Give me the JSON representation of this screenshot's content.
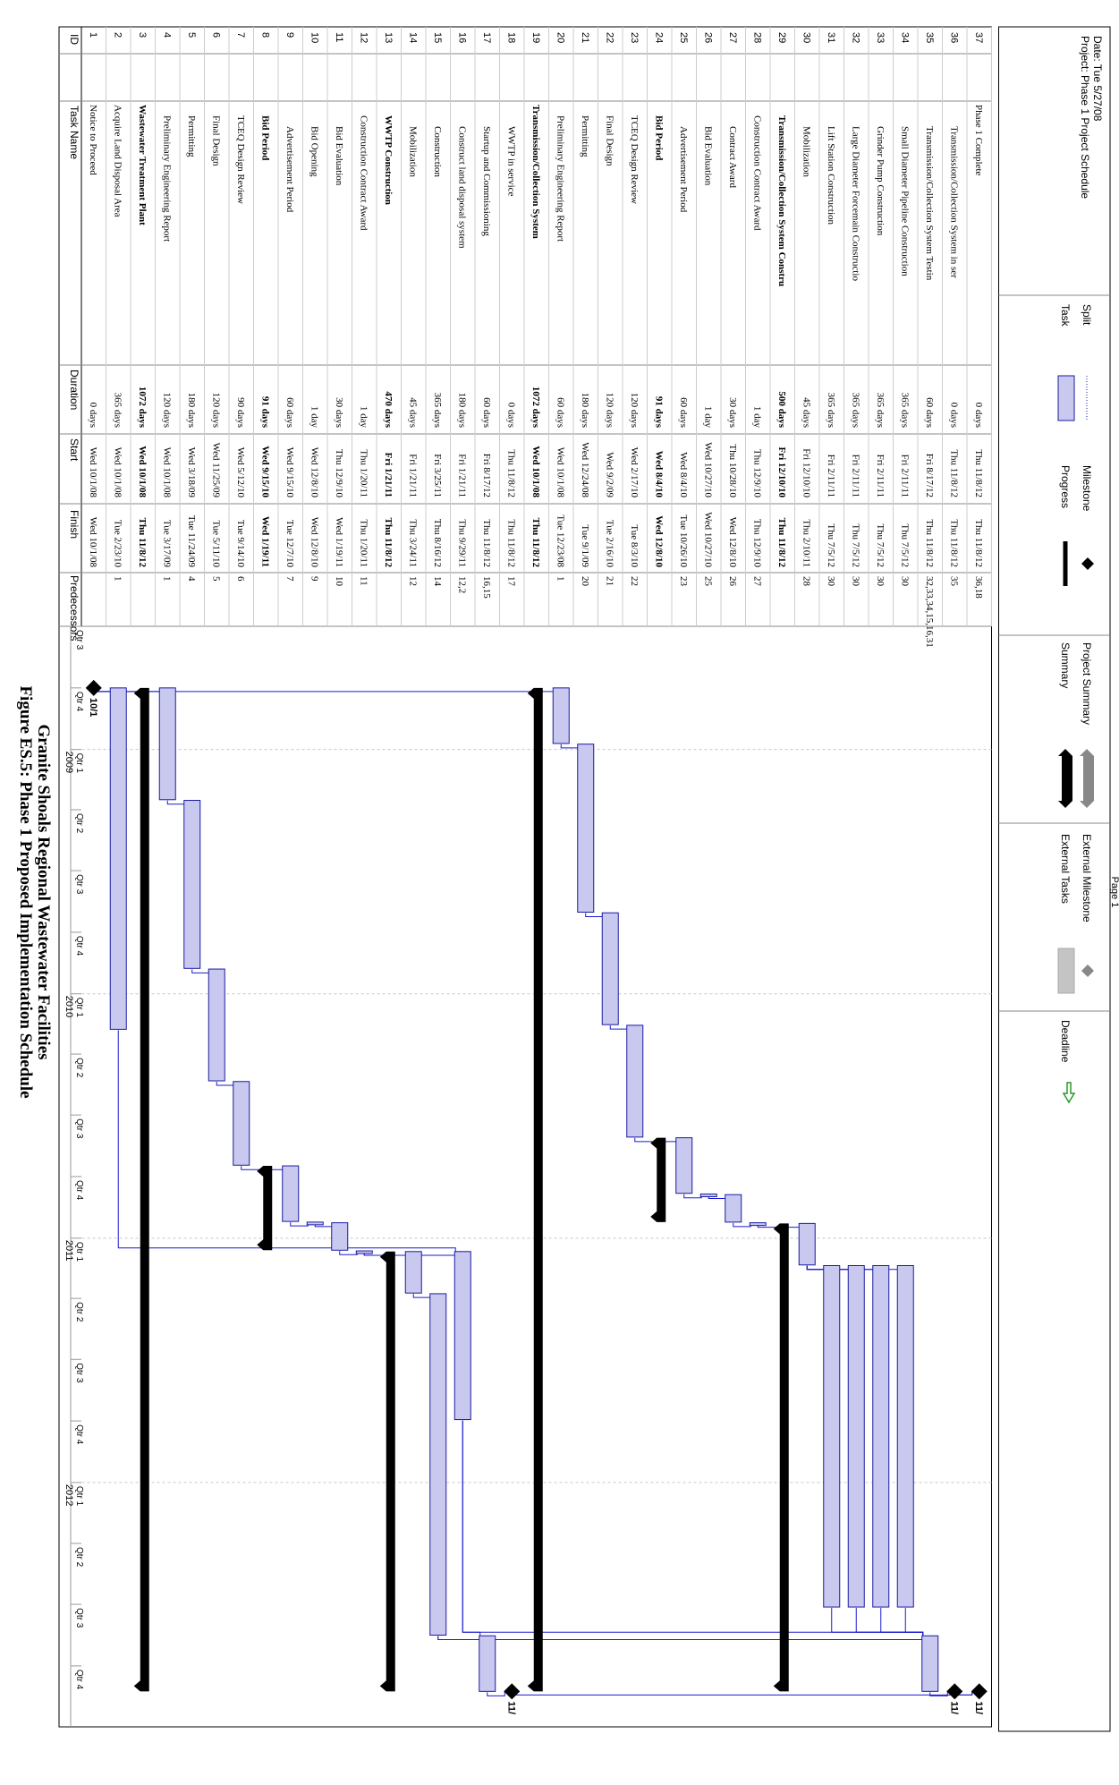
{
  "title_line1": "Figure ES.5: Phase 1 Proposed Implementation Schedule",
  "title_line2": "Granite Shoals Regional Wastewater Facilities",
  "columns": {
    "id": "ID",
    "name": "Task Name",
    "duration": "Duration",
    "start": "Start",
    "finish": "Finish",
    "predecessors": "Predecessors"
  },
  "timescale": {
    "years": [
      "2009",
      "2010",
      "2011",
      "2012"
    ],
    "quarters": [
      "Qtr 3",
      "Qtr 4",
      "Qtr 1",
      "Qtr 2",
      "Qtr 3",
      "Qtr 4",
      "Qtr 1",
      "Qtr 2",
      "Qtr 3",
      "Qtr 4",
      "Qtr 1",
      "Qtr 2",
      "Qtr 3",
      "Qtr 4",
      "Qtr 1",
      "Qtr 2",
      "Qtr 3",
      "Qtr 4"
    ]
  },
  "chart_data": {
    "type": "table",
    "time_range": [
      "2008-07-01",
      "2012-12-31"
    ],
    "tasks": [
      {
        "id": "1",
        "name": "Notice to Proceed",
        "duration": "0 days",
        "start": "Wed 10/1/08",
        "finish": "Wed 10/1/08",
        "pred": "",
        "type": "milestone",
        "level": 0,
        "bold": false,
        "s": "2008-10-01",
        "f": "2008-10-01",
        "label": "10/1"
      },
      {
        "id": "2",
        "name": "Acquire Land Disposal Area",
        "duration": "365 days",
        "start": "Wed 10/1/08",
        "finish": "Tue 2/23/10",
        "pred": "1",
        "type": "task",
        "level": 0,
        "bold": false,
        "s": "2008-10-01",
        "f": "2010-02-23"
      },
      {
        "id": "3",
        "name": "Wastewater Treatment Plant",
        "duration": "1072 days",
        "start": "Wed 10/1/08",
        "finish": "Thu 11/8/12",
        "pred": "",
        "type": "summary",
        "level": 0,
        "bold": true,
        "s": "2008-10-01",
        "f": "2012-11-08"
      },
      {
        "id": "4",
        "name": "Preliminary Engineering Report",
        "duration": "120 days",
        "start": "Wed 10/1/08",
        "finish": "Tue 3/17/09",
        "pred": "1",
        "type": "task",
        "level": 1,
        "bold": false,
        "s": "2008-10-01",
        "f": "2009-03-17"
      },
      {
        "id": "5",
        "name": "Permitting",
        "duration": "180 days",
        "start": "Wed 3/18/09",
        "finish": "Tue 11/24/09",
        "pred": "4",
        "type": "task",
        "level": 1,
        "bold": false,
        "s": "2009-03-18",
        "f": "2009-11-24"
      },
      {
        "id": "6",
        "name": "Final Design",
        "duration": "120 days",
        "start": "Wed 11/25/09",
        "finish": "Tue 5/11/10",
        "pred": "5",
        "type": "task",
        "level": 1,
        "bold": false,
        "s": "2009-11-25",
        "f": "2010-05-11"
      },
      {
        "id": "7",
        "name": "TCEQ Design Review",
        "duration": "90 days",
        "start": "Wed 5/12/10",
        "finish": "Tue 9/14/10",
        "pred": "6",
        "type": "task",
        "level": 1,
        "bold": false,
        "s": "2010-05-12",
        "f": "2010-09-14"
      },
      {
        "id": "8",
        "name": "Bid Period",
        "duration": "91 days",
        "start": "Wed 9/15/10",
        "finish": "Wed 1/19/11",
        "pred": "",
        "type": "summary",
        "level": 1,
        "bold": true,
        "s": "2010-09-15",
        "f": "2011-01-19"
      },
      {
        "id": "9",
        "name": "Advertisement Period",
        "duration": "60 days",
        "start": "Wed 9/15/10",
        "finish": "Tue 12/7/10",
        "pred": "7",
        "type": "task",
        "level": 2,
        "bold": false,
        "s": "2010-09-15",
        "f": "2010-12-07"
      },
      {
        "id": "10",
        "name": "Bid Opening",
        "duration": "1 day",
        "start": "Wed 12/8/10",
        "finish": "Wed 12/8/10",
        "pred": "9",
        "type": "task",
        "level": 2,
        "bold": false,
        "s": "2010-12-08",
        "f": "2010-12-08"
      },
      {
        "id": "11",
        "name": "Bid Evaluation",
        "duration": "30 days",
        "start": "Thu 12/9/10",
        "finish": "Wed 1/19/11",
        "pred": "10",
        "type": "task",
        "level": 2,
        "bold": false,
        "s": "2010-12-09",
        "f": "2011-01-19"
      },
      {
        "id": "12",
        "name": "Construction Contract Award",
        "duration": "1 day",
        "start": "Thu 1/20/11",
        "finish": "Thu 1/20/11",
        "pred": "11",
        "type": "task",
        "level": 1,
        "bold": false,
        "s": "2011-01-20",
        "f": "2011-01-20"
      },
      {
        "id": "13",
        "name": "WWTP Construction",
        "duration": "470 days",
        "start": "Fri 1/21/11",
        "finish": "Thu 11/8/12",
        "pred": "",
        "type": "summary",
        "level": 1,
        "bold": true,
        "s": "2011-01-21",
        "f": "2012-11-08"
      },
      {
        "id": "14",
        "name": "Mobilization",
        "duration": "45 days",
        "start": "Fri 1/21/11",
        "finish": "Thu 3/24/11",
        "pred": "12",
        "type": "task",
        "level": 2,
        "bold": false,
        "s": "2011-01-21",
        "f": "2011-03-24"
      },
      {
        "id": "15",
        "name": "Construction",
        "duration": "365 days",
        "start": "Fri 3/25/11",
        "finish": "Thu 8/16/12",
        "pred": "14",
        "type": "task",
        "level": 2,
        "bold": false,
        "s": "2011-03-25",
        "f": "2012-08-16"
      },
      {
        "id": "16",
        "name": "Construct land disposal system",
        "duration": "180 days",
        "start": "Fri 1/21/11",
        "finish": "Thu 9/29/11",
        "pred": "12,2",
        "type": "task",
        "level": 2,
        "bold": false,
        "s": "2011-01-21",
        "f": "2011-09-29"
      },
      {
        "id": "17",
        "name": "Startup and Commissioning",
        "duration": "60 days",
        "start": "Fri 8/17/12",
        "finish": "Thu 11/8/12",
        "pred": "16,15",
        "type": "task",
        "level": 2,
        "bold": false,
        "s": "2012-08-17",
        "f": "2012-11-08"
      },
      {
        "id": "18",
        "name": "WWTP in service",
        "duration": "0 days",
        "start": "Thu 11/8/12",
        "finish": "Thu 11/8/12",
        "pred": "17",
        "type": "milestone",
        "level": 2,
        "bold": false,
        "s": "2012-11-08",
        "f": "2012-11-08",
        "label": "11/"
      },
      {
        "id": "19",
        "name": "Transmission/Collection System",
        "duration": "1072 days",
        "start": "Wed 10/1/08",
        "finish": "Thu 11/8/12",
        "pred": "",
        "type": "summary",
        "level": 0,
        "bold": true,
        "s": "2008-10-01",
        "f": "2012-11-08"
      },
      {
        "id": "20",
        "name": "Preliminary Engineering Report",
        "duration": "60 days",
        "start": "Wed 10/1/08",
        "finish": "Tue 12/23/08",
        "pred": "1",
        "type": "task",
        "level": 1,
        "bold": false,
        "s": "2008-10-01",
        "f": "2008-12-23"
      },
      {
        "id": "21",
        "name": "Permitting",
        "duration": "180 days",
        "start": "Wed 12/24/08",
        "finish": "Tue 9/1/09",
        "pred": "20",
        "type": "task",
        "level": 1,
        "bold": false,
        "s": "2008-12-24",
        "f": "2009-09-01"
      },
      {
        "id": "22",
        "name": "Final Design",
        "duration": "120 days",
        "start": "Wed 9/2/09",
        "finish": "Tue 2/16/10",
        "pred": "21",
        "type": "task",
        "level": 1,
        "bold": false,
        "s": "2009-09-02",
        "f": "2010-02-16"
      },
      {
        "id": "23",
        "name": "TCEQ Design Review",
        "duration": "120 days",
        "start": "Wed 2/17/10",
        "finish": "Tue 8/3/10",
        "pred": "22",
        "type": "task",
        "level": 1,
        "bold": false,
        "s": "2010-02-17",
        "f": "2010-08-03"
      },
      {
        "id": "24",
        "name": "Bid Period",
        "duration": "91 days",
        "start": "Wed 8/4/10",
        "finish": "Wed 12/8/10",
        "pred": "",
        "type": "summary",
        "level": 1,
        "bold": true,
        "s": "2010-08-04",
        "f": "2010-12-08"
      },
      {
        "id": "25",
        "name": "Advertisement Period",
        "duration": "60 days",
        "start": "Wed 8/4/10",
        "finish": "Tue 10/26/10",
        "pred": "23",
        "type": "task",
        "level": 2,
        "bold": false,
        "s": "2010-08-04",
        "f": "2010-10-26"
      },
      {
        "id": "26",
        "name": "Bid Evaluation",
        "duration": "1 day",
        "start": "Wed 10/27/10",
        "finish": "Wed 10/27/10",
        "pred": "25",
        "type": "task",
        "level": 2,
        "bold": false,
        "s": "2010-10-27",
        "f": "2010-10-27"
      },
      {
        "id": "27",
        "name": "Contract Award",
        "duration": "30 days",
        "start": "Thu 10/28/10",
        "finish": "Wed 12/8/10",
        "pred": "26",
        "type": "task",
        "level": 2,
        "bold": false,
        "s": "2010-10-28",
        "f": "2010-12-08"
      },
      {
        "id": "28",
        "name": "Construction Contract Award",
        "duration": "1 day",
        "start": "Thu 12/9/10",
        "finish": "Thu 12/9/10",
        "pred": "27",
        "type": "task",
        "level": 1,
        "bold": false,
        "s": "2010-12-09",
        "f": "2010-12-09"
      },
      {
        "id": "29",
        "name": "Transmission/Collection System Constru",
        "duration": "500 days",
        "start": "Fri 12/10/10",
        "finish": "Thu 11/8/12",
        "pred": "",
        "type": "summary",
        "level": 1,
        "bold": true,
        "s": "2010-12-10",
        "f": "2012-11-08"
      },
      {
        "id": "30",
        "name": "Mobilization",
        "duration": "45 days",
        "start": "Fri 12/10/10",
        "finish": "Thu 2/10/11",
        "pred": "28",
        "type": "task",
        "level": 2,
        "bold": false,
        "s": "2010-12-10",
        "f": "2011-02-10"
      },
      {
        "id": "31",
        "name": "Lift Station Construction",
        "duration": "365 days",
        "start": "Fri 2/11/11",
        "finish": "Thu 7/5/12",
        "pred": "30",
        "type": "task",
        "level": 2,
        "bold": false,
        "s": "2011-02-11",
        "f": "2012-07-05"
      },
      {
        "id": "32",
        "name": "Large Diameter Forcemain Constructio",
        "duration": "365 days",
        "start": "Fri 2/11/11",
        "finish": "Thu 7/5/12",
        "pred": "30",
        "type": "task",
        "level": 2,
        "bold": false,
        "s": "2011-02-11",
        "f": "2012-07-05"
      },
      {
        "id": "33",
        "name": "Grinder Pump Construction",
        "duration": "365 days",
        "start": "Fri 2/11/11",
        "finish": "Thu 7/5/12",
        "pred": "30",
        "type": "task",
        "level": 2,
        "bold": false,
        "s": "2011-02-11",
        "f": "2012-07-05"
      },
      {
        "id": "34",
        "name": "Small Diameter Pipeline Construction",
        "duration": "365 days",
        "start": "Fri 2/11/11",
        "finish": "Thu 7/5/12",
        "pred": "30",
        "type": "task",
        "level": 2,
        "bold": false,
        "s": "2011-02-11",
        "f": "2012-07-05"
      },
      {
        "id": "35",
        "name": "Transmission/Collection System Testin",
        "duration": "60 days",
        "start": "Fri 8/17/12",
        "finish": "Thu 11/8/12",
        "pred": "32,33,34,15,16,31",
        "type": "task",
        "level": 2,
        "bold": false,
        "s": "2012-08-17",
        "f": "2012-11-08"
      },
      {
        "id": "36",
        "name": "Transmission/Collection System in ser",
        "duration": "0 days",
        "start": "Thu 11/8/12",
        "finish": "Thu 11/8/12",
        "pred": "35",
        "type": "milestone",
        "level": 2,
        "bold": false,
        "s": "2012-11-08",
        "f": "2012-11-08",
        "label": "11/"
      },
      {
        "id": "37",
        "name": "Phase 1 Complete",
        "duration": "0 days",
        "start": "Thu 11/8/12",
        "finish": "Thu 11/8/12",
        "pred": "36,18",
        "type": "milestone",
        "level": 0,
        "bold": false,
        "s": "2012-11-08",
        "f": "2012-11-08",
        "label": "11/"
      }
    ]
  },
  "legend": {
    "task": "Task",
    "split": "Split",
    "progress": "Progress",
    "milestone": "Milestone",
    "summary": "Summary",
    "project_summary": "Project Summary",
    "external_tasks": "External Tasks",
    "external_milestone": "External Milestone",
    "deadline": "Deadline"
  },
  "project_info": {
    "project": "Project: Phase 1 Project Schedule",
    "date": "Date: Tue 5/27/08"
  },
  "page_label": "Page 1",
  "colors": {
    "bar_fill": "#c9c9f0",
    "bar_stroke": "#1a1aa0",
    "link": "#1a1ad0",
    "summary": "#000000",
    "grid": "#c8c8c8"
  }
}
